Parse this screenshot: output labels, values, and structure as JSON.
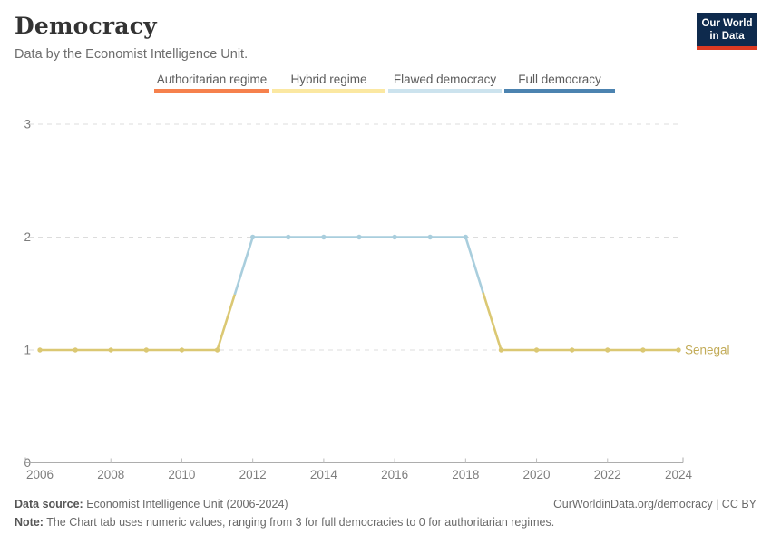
{
  "header": {
    "title": "Democracy",
    "subtitle": "Data by the Economist Intelligence Unit."
  },
  "logo": {
    "line1": "Our World",
    "line2": "in Data",
    "bg_color": "#0e2a4d",
    "stripe_color": "#dc3a22"
  },
  "legend": {
    "items": [
      {
        "label": "Authoritarian regime",
        "color": "#F6814D"
      },
      {
        "label": "Hybrid regime",
        "color": "#FBE8A2"
      },
      {
        "label": "Flawed democracy",
        "color": "#CCE3EE"
      },
      {
        "label": "Full democracy",
        "color": "#4C83B0"
      }
    ]
  },
  "chart_data": {
    "type": "line",
    "title": "Democracy",
    "subtitle": "Data by the Economist Intelligence Unit.",
    "x": [
      2006,
      2007,
      2008,
      2009,
      2010,
      2011,
      2012,
      2013,
      2014,
      2015,
      2016,
      2017,
      2018,
      2019,
      2020,
      2021,
      2022,
      2023,
      2024
    ],
    "series": [
      {
        "name": "Senegal",
        "values": [
          1,
          1,
          1,
          1,
          1,
          1,
          2,
          2,
          2,
          2,
          2,
          2,
          2,
          1,
          1,
          1,
          1,
          1,
          1
        ],
        "label_color": "#C2AB57"
      }
    ],
    "ylim": [
      0,
      3
    ],
    "yticks": [
      0,
      1,
      2,
      3
    ],
    "xticks": [
      2006,
      2008,
      2010,
      2012,
      2014,
      2016,
      2018,
      2020,
      2022,
      2024
    ],
    "xlabel": "",
    "ylabel": "",
    "grid": "horizontal-dashed",
    "legend_position": "top",
    "level_colors": {
      "1": "#DBC873",
      "2": "#A9CEDD"
    },
    "value_meaning": "0 authoritarian regime, 1 hybrid regime, 2 flawed democracy, 3 full democracy"
  },
  "footer": {
    "source_label": "Data source:",
    "source_text": " Economist Intelligence Unit (2006-2024)",
    "link_text": "OurWorldinData.org/democracy | CC BY",
    "note_label": "Note:",
    "note_text": " The Chart tab uses numeric values, ranging from 3 for full democracies to 0 for authoritarian regimes."
  }
}
